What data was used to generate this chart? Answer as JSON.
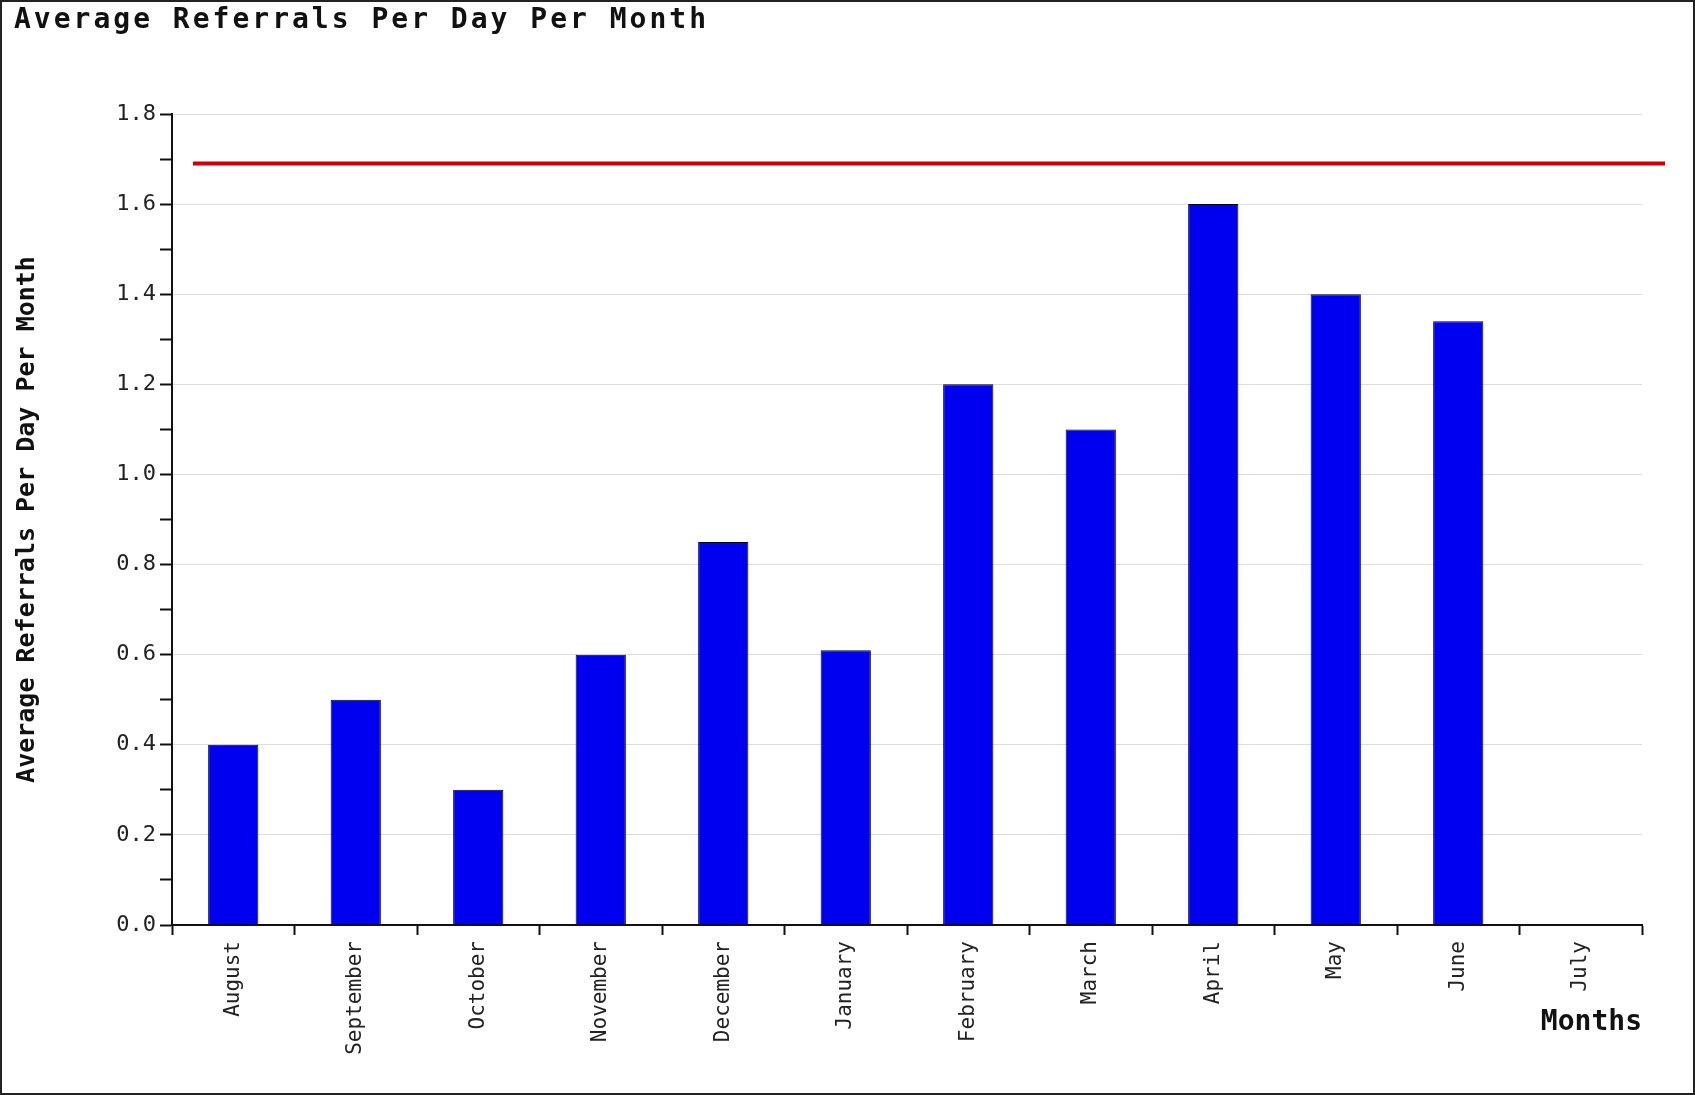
{
  "chart_data": {
    "type": "bar",
    "title": "Average Referrals Per Day Per Month",
    "xlabel": "Months",
    "ylabel": "Average Referrals Per Day Per Month",
    "categories": [
      "August",
      "September",
      "October",
      "November",
      "December",
      "January",
      "February",
      "March",
      "April",
      "May",
      "June",
      "July"
    ],
    "values": [
      0.4,
      0.5,
      0.3,
      0.6,
      0.85,
      0.61,
      1.2,
      1.1,
      1.6,
      1.4,
      1.34,
      null
    ],
    "color": "#0000f0",
    "ylim": [
      0,
      1.8
    ],
    "yticks": [
      {
        "value": 0,
        "label": "0.0"
      },
      {
        "value": 0.1,
        "label": null
      },
      0.2,
      {
        "value": 0.3,
        "label": null
      },
      0.4,
      {
        "value": 0.5,
        "label": null
      },
      0.6,
      {
        "value": 0.7,
        "label": null
      },
      0.8,
      {
        "value": 0.9,
        "label": null
      },
      {
        "value": 1,
        "label": "1.0"
      },
      {
        "value": 1.1,
        "label": null
      },
      1.2,
      {
        "value": 1.3,
        "label": null
      },
      1.4,
      {
        "value": 1.5,
        "label": null
      },
      1.6,
      {
        "value": 1.7,
        "label": null
      },
      1.8
    ],
    "grid": "y",
    "ref_lines": [
      {
        "axis": "y",
        "value": 1.69,
        "color": "#cc0000"
      }
    ]
  }
}
